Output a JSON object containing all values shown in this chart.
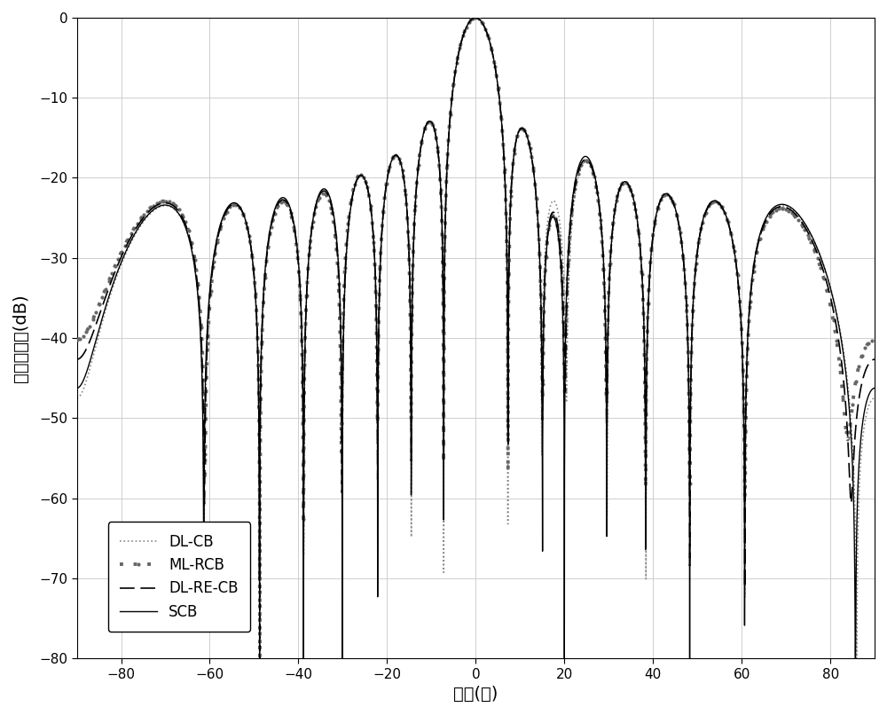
{
  "title": "",
  "xlabel": "方向(度)",
  "ylabel": "归一化幅度(dB)",
  "xlim": [
    -90,
    90
  ],
  "ylim": [
    -80,
    0
  ],
  "xticks": [
    -80,
    -60,
    -40,
    -20,
    0,
    20,
    40,
    60,
    80
  ],
  "yticks": [
    0,
    -10,
    -20,
    -30,
    -40,
    -50,
    -60,
    -70,
    -80
  ],
  "legend_labels": [
    "SCB",
    "DL-CB",
    "DL-RE-CB",
    "ML-RCB"
  ],
  "legend_loc": "lower left",
  "grid": true,
  "background_color": "#ffffff",
  "N": 16,
  "d": 0.5,
  "theta0": 0,
  "interference_angles": [
    20
  ],
  "SCB_color": "#000000",
  "DLCB_color": "#888888",
  "DLRECB_color": "#000000",
  "MLRCB_color": "#666666"
}
